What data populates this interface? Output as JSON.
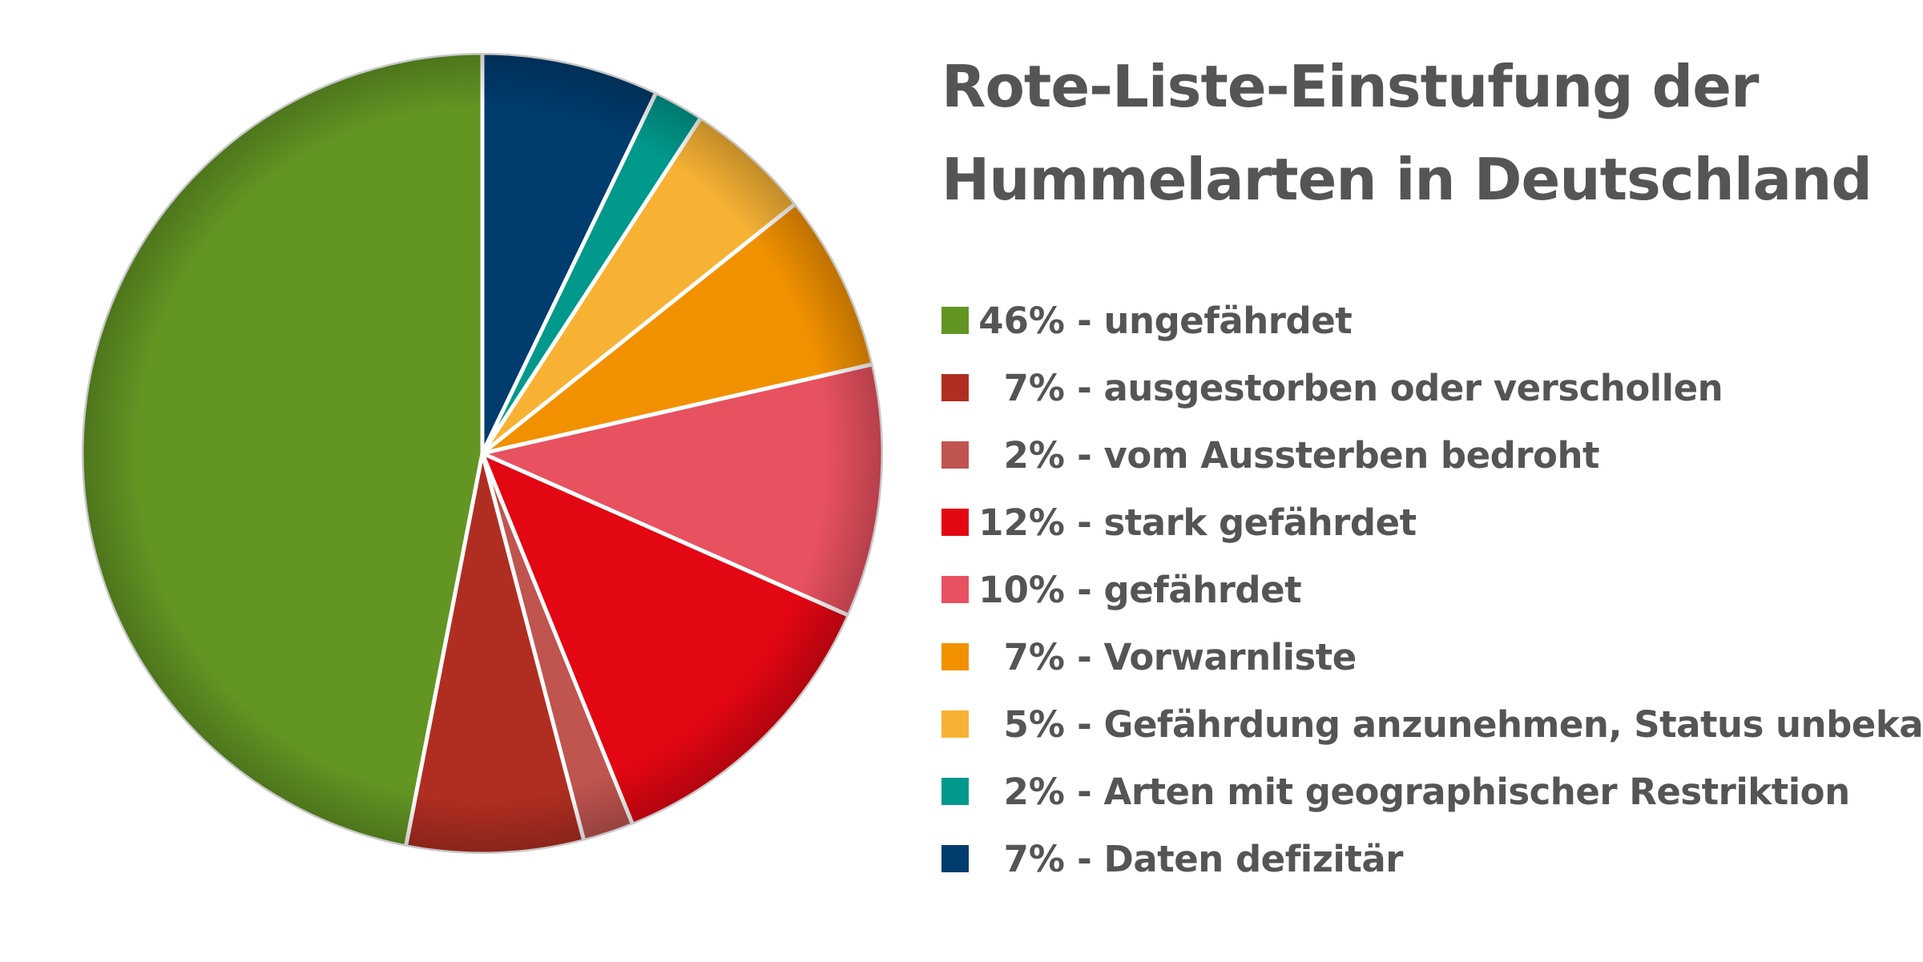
{
  "chart_data": {
    "type": "pie",
    "title_lines": [
      "Rote-Liste-Einstufung der",
      "Hummelarten in Deutschland"
    ],
    "start": "12 o'clock",
    "direction": "clockwise",
    "slices": [
      {
        "name": "Daten defizitär",
        "pct_label": "7%",
        "value": 7,
        "color": "#003C6E"
      },
      {
        "name": "Arten mit geographischer Restriktion",
        "pct_label": "2%",
        "value": 2,
        "color": "#00998C"
      },
      {
        "name": "Gefährdung anzunehmen, Status unbekannt",
        "pct_label": "5%",
        "value": 5,
        "color": "#F7B234"
      },
      {
        "name": "Vorwarnliste",
        "pct_label": "7%",
        "value": 7,
        "color": "#F29100"
      },
      {
        "name": "gefährdet",
        "pct_label": "10%",
        "value": 10,
        "color": "#E8515F"
      },
      {
        "name": "stark gefährdet",
        "pct_label": "12%",
        "value": 12,
        "color": "#E30613"
      },
      {
        "name": "vom Aussterben bedroht",
        "pct_label": "2%",
        "value": 2,
        "color": "#C0544F"
      },
      {
        "name": "ausgestorben oder verschollen",
        "pct_label": "7%",
        "value": 7,
        "color": "#B02E21"
      },
      {
        "name": "ungefährdet",
        "pct_label": "46%",
        "value": 46,
        "color": "#639523"
      }
    ],
    "legend": {
      "placement": "right",
      "order": [
        "ungefährdet",
        "ausgestorben oder verschollen",
        "vom Aussterben bedroht",
        "stark gefährdet",
        "gefährdet",
        "Vorwarnliste",
        "Gefährdung anzunehmen, Status unbekannt",
        "Arten mit geographischer Restriktion",
        "Daten defizitär"
      ]
    }
  }
}
